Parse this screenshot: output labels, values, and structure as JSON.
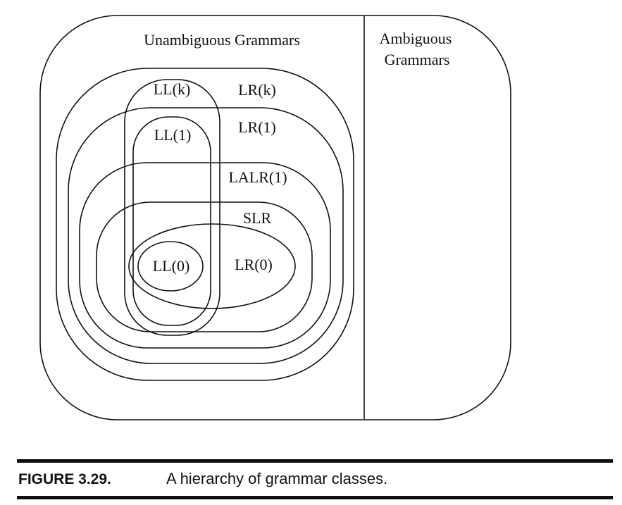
{
  "diagram": {
    "labels": {
      "unambiguous": "Unambiguous Grammars",
      "ambiguous_line1": "Ambiguous",
      "ambiguous_line2": "Grammars",
      "lr_k": "LR(k)",
      "lr_1": "LR(1)",
      "lalr_1": "LALR(1)",
      "slr": "SLR",
      "lr_0": "LR(0)",
      "ll_k": "LL(k)",
      "ll_1": "LL(1)",
      "ll_0": "LL(0)"
    }
  },
  "caption": {
    "figure_number": "FIGURE 3.29.",
    "text": "A hierarchy of grammar classes."
  }
}
